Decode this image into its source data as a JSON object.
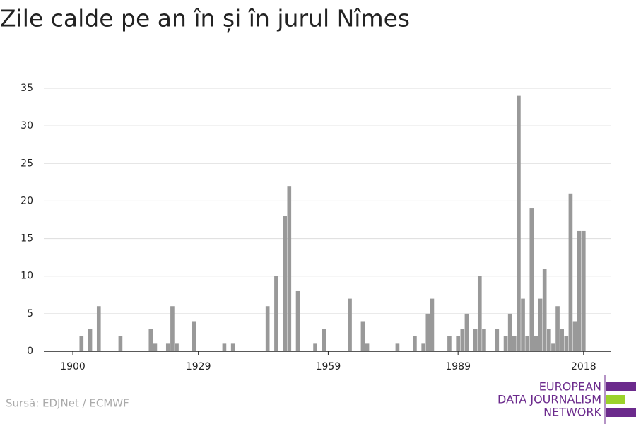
{
  "chart_data": {
    "type": "bar",
    "title": "Zile calde pe an în și în jurul Nîmes",
    "source": "Sursă: EDJNet / ECMWF",
    "logo": [
      "EUROPEAN",
      "DATA JOURNALISM",
      "NETWORK"
    ],
    "color": "#999999",
    "x": [
      1902,
      1904,
      1906,
      1911,
      1918,
      1919,
      1922,
      1923,
      1924,
      1928,
      1935,
      1937,
      1945,
      1947,
      1949,
      1950,
      1952,
      1956,
      1958,
      1964,
      1967,
      1968,
      1975,
      1979,
      1981,
      1982,
      1983,
      1987,
      1989,
      1990,
      1991,
      1993,
      1994,
      1995,
      1998,
      2000,
      2001,
      2002,
      2003,
      2004,
      2005,
      2006,
      2007,
      2008,
      2009,
      2010,
      2011,
      2012,
      2013,
      2014,
      2015,
      2016,
      2017,
      2018
    ],
    "values": [
      2,
      3,
      6,
      2,
      3,
      1,
      1,
      6,
      1,
      4,
      1,
      1,
      6,
      10,
      18,
      22,
      8,
      1,
      3,
      7,
      4,
      1,
      1,
      2,
      1,
      5,
      7,
      2,
      2,
      3,
      5,
      3,
      10,
      3,
      3,
      2,
      5,
      2,
      34,
      7,
      2,
      19,
      2,
      7,
      11,
      3,
      1,
      6,
      3,
      2,
      21,
      4,
      16,
      16
    ],
    "xlim": [
      1893.3,
      2024.4
    ],
    "xticks": [
      1900,
      1929,
      1959,
      1989,
      2018
    ],
    "ylim": [
      0,
      35
    ],
    "yticks": [
      0,
      5,
      10,
      15,
      20,
      25,
      30,
      35
    ],
    "grid": true
  }
}
